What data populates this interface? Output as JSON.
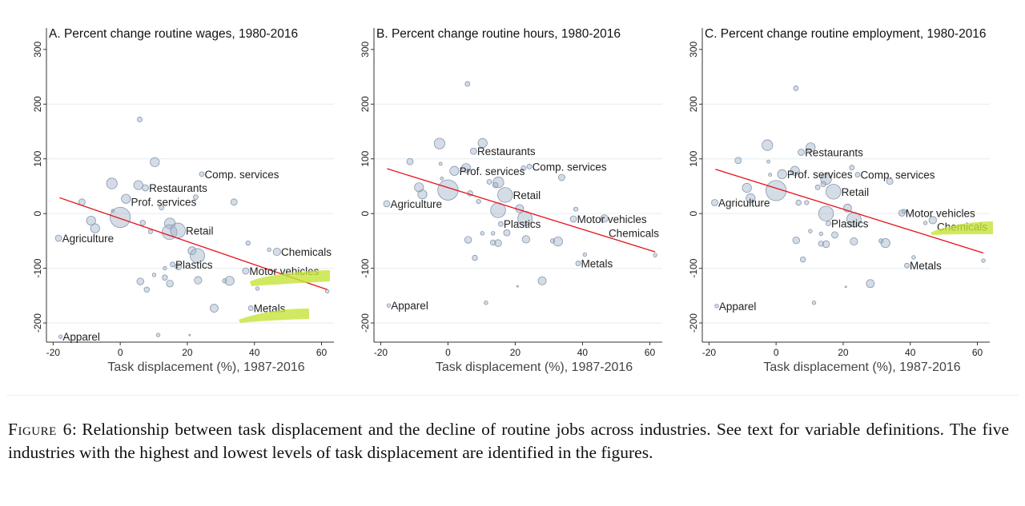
{
  "highlight_color": "#c6e33a",
  "caption": {
    "label": "Figure 6:",
    "text": "Relationship between task displacement and the decline of routine jobs across industries. See text for variable definitions. The five industries with the highest and lowest levels of task displacement are identified in the figures."
  },
  "chart_data": [
    {
      "type": "scatter",
      "title": "A. Percent change routine wages, 1980-2016",
      "xlabel": "Task displacement (%), 1987-2016",
      "ylabel": "",
      "xlim": [
        -22,
        63.7
      ],
      "ylim": [
        -235,
        310
      ],
      "xticks": [
        -20,
        0,
        20,
        40,
        60
      ],
      "yticks": [
        -200,
        -100,
        0,
        100,
        200,
        300
      ],
      "grid": true,
      "fit_line": {
        "color": "#e8101a",
        "from": [
          -18.1,
          29
        ],
        "to": [
          61.7,
          -139
        ]
      },
      "points": [
        {
          "x": 5.8,
          "y": 172,
          "s": 3
        },
        {
          "x": 10.3,
          "y": 94,
          "s": 5.7
        },
        {
          "x": 24.3,
          "y": 72,
          "s": 3,
          "label": "Comp. services"
        },
        {
          "x": -2.5,
          "y": 55,
          "s": 6.7
        },
        {
          "x": 5.4,
          "y": 52,
          "s": 5.7
        },
        {
          "x": 7.5,
          "y": 47,
          "s": 4,
          "label": "Restaurants"
        },
        {
          "x": 1.7,
          "y": 27,
          "s": 5.7,
          "label": "Prof. services"
        },
        {
          "x": 22.5,
          "y": 30,
          "s": 3
        },
        {
          "x": 33.9,
          "y": 21,
          "s": 4
        },
        {
          "x": -11.4,
          "y": 21,
          "s": 4
        },
        {
          "x": 12.3,
          "y": 11,
          "s": 3
        },
        {
          "x": -2.2,
          "y": 5,
          "s": 2
        },
        {
          "x": 0,
          "y": -7,
          "s": 12.7
        },
        {
          "x": -8.7,
          "y": -13,
          "s": 5.7
        },
        {
          "x": -7.5,
          "y": -27,
          "s": 5.7
        },
        {
          "x": 6.7,
          "y": -17,
          "s": 3.3
        },
        {
          "x": 9,
          "y": -33,
          "s": 2.7
        },
        {
          "x": 14.8,
          "y": -18,
          "s": 6.7
        },
        {
          "x": 14.7,
          "y": -34,
          "s": 9.3
        },
        {
          "x": 17.2,
          "y": -31,
          "s": 9.3,
          "label": "Retail"
        },
        {
          "x": -18.4,
          "y": -45,
          "s": 4,
          "label": "Agriculture"
        },
        {
          "x": 38.1,
          "y": -54,
          "s": 2.7
        },
        {
          "x": 44.4,
          "y": -66,
          "s": 2.3
        },
        {
          "x": 46.7,
          "y": -70,
          "s": 4.7,
          "label": "Chemicals"
        },
        {
          "x": 21.4,
          "y": -68,
          "s": 5
        },
        {
          "x": 23,
          "y": -77,
          "s": 9
        },
        {
          "x": 15.6,
          "y": -93,
          "s": 3,
          "label": "Plastics"
        },
        {
          "x": 17.3,
          "y": -97,
          "s": 4
        },
        {
          "x": 13.3,
          "y": -100,
          "s": 2.3
        },
        {
          "x": 37.4,
          "y": -105,
          "s": 4,
          "label": "Motor vehicles"
        },
        {
          "x": 10.1,
          "y": -112,
          "s": 2.3
        },
        {
          "x": 13.3,
          "y": -117,
          "s": 3.3
        },
        {
          "x": 6,
          "y": -124,
          "s": 4.3
        },
        {
          "x": 14.8,
          "y": -128,
          "s": 4.3
        },
        {
          "x": 23.2,
          "y": -122,
          "s": 4.7
        },
        {
          "x": 31.1,
          "y": -123,
          "s": 2.7
        },
        {
          "x": 32.6,
          "y": -123,
          "s": 5.7
        },
        {
          "x": 7.9,
          "y": -139,
          "s": 3.3
        },
        {
          "x": 40.9,
          "y": -137,
          "s": 2.3
        },
        {
          "x": 61.7,
          "y": -142,
          "s": 2.3
        },
        {
          "x": 28,
          "y": -173,
          "s": 5
        },
        {
          "x": 38.9,
          "y": -173,
          "s": 3,
          "label": "Metals"
        },
        {
          "x": 11.3,
          "y": -222,
          "s": 2.3
        },
        {
          "x": 20.7,
          "y": -222,
          "s": 1
        },
        {
          "x": -17.8,
          "y": -225,
          "s": 2.3,
          "label": "Apparel"
        }
      ]
    },
    {
      "type": "scatter",
      "title": "B. Percent change routine hours, 1980-2016",
      "xlabel": "Task displacement (%), 1987-2016",
      "ylabel": "",
      "xlim": [
        -22,
        63.7
      ],
      "ylim": [
        -235,
        310
      ],
      "xticks": [
        -20,
        0,
        20,
        40,
        60
      ],
      "yticks": [
        -200,
        -100,
        0,
        100,
        200,
        300
      ],
      "grid": true,
      "fit_line": {
        "color": "#e8101a",
        "from": [
          -18.1,
          82
        ],
        "to": [
          61.6,
          -70
        ]
      },
      "points": [
        {
          "x": 5.8,
          "y": 237,
          "s": 3
        },
        {
          "x": -2.5,
          "y": 128,
          "s": 6.7
        },
        {
          "x": 10.3,
          "y": 129,
          "s": 5.7
        },
        {
          "x": 7.6,
          "y": 114,
          "s": 4,
          "label": "Restaurants"
        },
        {
          "x": -11.3,
          "y": 95,
          "s": 4
        },
        {
          "x": -2.2,
          "y": 91,
          "s": 2
        },
        {
          "x": 22.5,
          "y": 83,
          "s": 3
        },
        {
          "x": 24.2,
          "y": 86,
          "s": 3,
          "label": "Comp. services"
        },
        {
          "x": 5.4,
          "y": 83,
          "s": 5.7
        },
        {
          "x": 1.9,
          "y": 78,
          "s": 5.7,
          "label": "Prof. services"
        },
        {
          "x": 33.8,
          "y": 66,
          "s": 4
        },
        {
          "x": -1.8,
          "y": 64,
          "s": 2
        },
        {
          "x": 12.3,
          "y": 58,
          "s": 3
        },
        {
          "x": 15,
          "y": 57,
          "s": 6.7
        },
        {
          "x": 14.1,
          "y": 52,
          "s": 3.3
        },
        {
          "x": -8.6,
          "y": 48,
          "s": 5.7
        },
        {
          "x": -7.6,
          "y": 35,
          "s": 5.7
        },
        {
          "x": 0,
          "y": 43,
          "s": 12.7
        },
        {
          "x": 17,
          "y": 34,
          "s": 9.3,
          "label": "Retail"
        },
        {
          "x": 6.6,
          "y": 37,
          "s": 3.3
        },
        {
          "x": 9.1,
          "y": 22,
          "s": 2.7
        },
        {
          "x": -18.2,
          "y": 18,
          "s": 4,
          "label": "Agriculture"
        },
        {
          "x": 14.9,
          "y": 6,
          "s": 9.3
        },
        {
          "x": 21.3,
          "y": 9,
          "s": 5
        },
        {
          "x": 22.9,
          "y": -9,
          "s": 9
        },
        {
          "x": 38,
          "y": 8,
          "s": 2.7
        },
        {
          "x": 37.3,
          "y": -10,
          "s": 4,
          "label": "Motor vehicles"
        },
        {
          "x": 46.5,
          "y": -9,
          "s": 4.7,
          "label": "Chemicals"
        },
        {
          "x": 15.7,
          "y": -19,
          "s": 3,
          "label": "Plastics"
        },
        {
          "x": 17.5,
          "y": -35,
          "s": 4
        },
        {
          "x": 10.2,
          "y": -36,
          "s": 2.3
        },
        {
          "x": 13.4,
          "y": -36,
          "s": 2.3
        },
        {
          "x": 6,
          "y": -48,
          "s": 4.3
        },
        {
          "x": 13.4,
          "y": -53,
          "s": 3.3
        },
        {
          "x": 14.9,
          "y": -54,
          "s": 4.3
        },
        {
          "x": 23.2,
          "y": -47,
          "s": 4.7
        },
        {
          "x": 31.1,
          "y": -50,
          "s": 2.7
        },
        {
          "x": 32.7,
          "y": -51,
          "s": 5.7
        },
        {
          "x": 8,
          "y": -81,
          "s": 3.3
        },
        {
          "x": 40.7,
          "y": -75,
          "s": 2.3
        },
        {
          "x": 61.6,
          "y": -76,
          "s": 2.3
        },
        {
          "x": 38.7,
          "y": -91,
          "s": 3,
          "label": "Metals"
        },
        {
          "x": 28,
          "y": -123,
          "s": 5
        },
        {
          "x": 20.7,
          "y": -133,
          "s": 1
        },
        {
          "x": 11.3,
          "y": -163,
          "s": 2.3
        },
        {
          "x": -17.6,
          "y": -168,
          "s": 2.3,
          "label": "Apparel"
        }
      ]
    },
    {
      "type": "scatter",
      "title": "C. Percent change routine employment, 1980-2016",
      "xlabel": "Task displacement (%), 1987-2016",
      "ylabel": "",
      "xlim": [
        -22,
        63.7
      ],
      "ylim": [
        -235,
        310
      ],
      "xticks": [
        -20,
        0,
        20,
        40,
        60
      ],
      "yticks": [
        -200,
        -100,
        0,
        100,
        200,
        300
      ],
      "grid": true,
      "fit_line": {
        "color": "#e8101a",
        "from": [
          -18.1,
          81
        ],
        "to": [
          61.8,
          -72
        ]
      },
      "points": [
        {
          "x": 5.9,
          "y": 229,
          "s": 3
        },
        {
          "x": -2.6,
          "y": 125,
          "s": 6.7
        },
        {
          "x": 10.3,
          "y": 121,
          "s": 5.7
        },
        {
          "x": 7.5,
          "y": 112,
          "s": 4,
          "label": "Restaurants"
        },
        {
          "x": -11.3,
          "y": 97,
          "s": 4
        },
        {
          "x": -2.3,
          "y": 95,
          "s": 2
        },
        {
          "x": 22.6,
          "y": 84,
          "s": 3
        },
        {
          "x": 24.3,
          "y": 71,
          "s": 3,
          "label": "Comp. services"
        },
        {
          "x": 5.6,
          "y": 78,
          "s": 5.7
        },
        {
          "x": 1.8,
          "y": 72,
          "s": 5.7,
          "label": "Prof. services"
        },
        {
          "x": 33.9,
          "y": 59,
          "s": 4
        },
        {
          "x": -1.8,
          "y": 71,
          "s": 2
        },
        {
          "x": 12.4,
          "y": 48,
          "s": 3
        },
        {
          "x": 14.9,
          "y": 63,
          "s": 6.7
        },
        {
          "x": 14.1,
          "y": 54,
          "s": 3.3
        },
        {
          "x": -8.7,
          "y": 47,
          "s": 5.7
        },
        {
          "x": -7.6,
          "y": 28,
          "s": 5.7
        },
        {
          "x": 0,
          "y": 42,
          "s": 12.7
        },
        {
          "x": 17.1,
          "y": 40,
          "s": 9.3,
          "label": "Retail"
        },
        {
          "x": 6.7,
          "y": 20,
          "s": 3.3
        },
        {
          "x": 9.1,
          "y": 20,
          "s": 2.7
        },
        {
          "x": -18.3,
          "y": 20,
          "s": 4,
          "label": "Agriculture"
        },
        {
          "x": 14.9,
          "y": 0,
          "s": 9.3
        },
        {
          "x": 21.3,
          "y": 10,
          "s": 5
        },
        {
          "x": 23.2,
          "y": -11,
          "s": 9
        },
        {
          "x": 38.1,
          "y": 4,
          "s": 2.7
        },
        {
          "x": 37.5,
          "y": 1,
          "s": 4,
          "label": "Motor vehicles"
        },
        {
          "x": 46.7,
          "y": -12,
          "s": 4.7,
          "label": "Chemicals"
        },
        {
          "x": 44.5,
          "y": -17,
          "s": 2.3
        },
        {
          "x": 15.6,
          "y": -18,
          "s": 3,
          "label": "Plastics"
        },
        {
          "x": 17.5,
          "y": -39,
          "s": 4
        },
        {
          "x": 10.2,
          "y": -32,
          "s": 2.3
        },
        {
          "x": 13.4,
          "y": -37,
          "s": 2.3
        },
        {
          "x": 6,
          "y": -49,
          "s": 4.3
        },
        {
          "x": 13.4,
          "y": -55,
          "s": 3.3
        },
        {
          "x": 14.9,
          "y": -56,
          "s": 4.3
        },
        {
          "x": 23.2,
          "y": -51,
          "s": 4.7
        },
        {
          "x": 31.3,
          "y": -50,
          "s": 2.7
        },
        {
          "x": 32.6,
          "y": -54,
          "s": 5.7
        },
        {
          "x": 8,
          "y": -84,
          "s": 3.3
        },
        {
          "x": 41,
          "y": -80,
          "s": 2.3
        },
        {
          "x": 61.8,
          "y": -86,
          "s": 2.3
        },
        {
          "x": 39,
          "y": -95,
          "s": 3,
          "label": "Metals"
        },
        {
          "x": 28.1,
          "y": -128,
          "s": 5
        },
        {
          "x": 20.8,
          "y": -134,
          "s": 1
        },
        {
          "x": 11.3,
          "y": -163,
          "s": 2.3
        },
        {
          "x": -17.7,
          "y": -169,
          "s": 2.3,
          "label": "Apparel"
        }
      ]
    }
  ]
}
